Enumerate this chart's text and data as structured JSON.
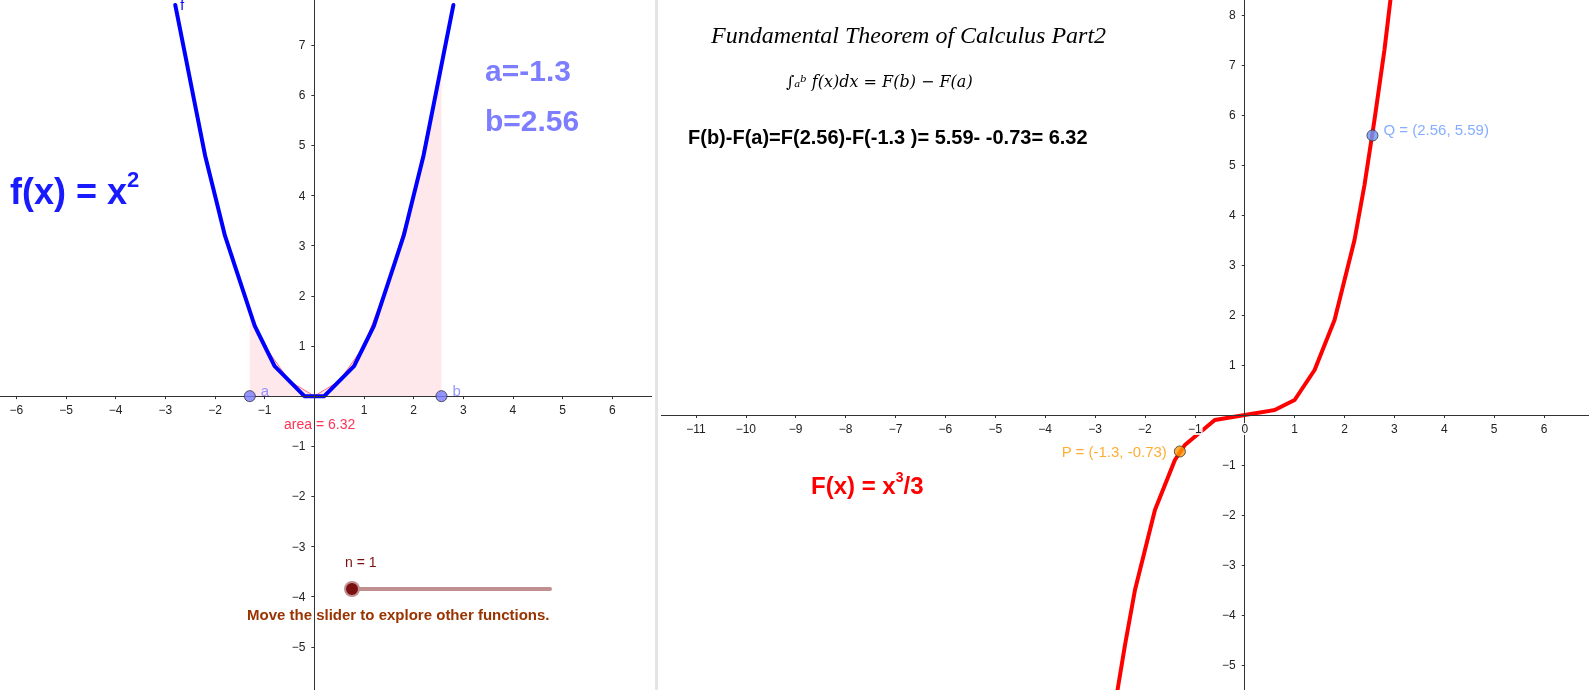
{
  "chart_data": [
    {
      "type": "line",
      "xlim": [
        -6.33,
        6.8
      ],
      "ylim": [
        -5.86,
        7.9
      ],
      "xticks": [
        -6,
        -5,
        -4,
        -3,
        -2,
        -1,
        1,
        2,
        3,
        4,
        5,
        6
      ],
      "yticks": [
        -5,
        -4,
        -3,
        -2,
        -1,
        1,
        2,
        3,
        4,
        5,
        6,
        7
      ],
      "grid": false,
      "legend": false,
      "series": [
        {
          "type": "area",
          "color": "#ff6680",
          "x": [
            -1.3,
            -1,
            -0.5,
            0,
            0.5,
            1,
            1.5,
            2,
            2.56
          ],
          "values": [
            1.7,
            1,
            0.3,
            0,
            0.3,
            1,
            2.3,
            4,
            6.6
          ]
        },
        {
          "name": "f",
          "color": "#0000ff",
          "x": [
            -2.8,
            -2.6,
            -2.4,
            -2.2,
            -2,
            -1.8,
            -1.6,
            -1.4,
            -1.2,
            -1,
            -0.8,
            -0.6,
            -0.4,
            -0.2,
            0,
            0.2,
            0.4,
            0.6,
            0.8,
            1,
            1.2,
            1.4,
            1.6,
            1.8,
            2,
            2.2,
            2.4,
            2.6,
            2.8
          ],
          "values": [
            7.8,
            6.8,
            5.8,
            4.8,
            4,
            3.2,
            2.6,
            2,
            1.4,
            1,
            0.6,
            0.4,
            0.2,
            0,
            0,
            0,
            0.2,
            0.4,
            0.6,
            1,
            1.4,
            2,
            2.6,
            3.2,
            4,
            4.8,
            5.8,
            6.8,
            7.8
          ]
        },
        {
          "type": "scatter",
          "marker": "circle",
          "color": "#7b7bff",
          "x": [
            -1.3,
            2.56
          ],
          "values": [
            0,
            0
          ],
          "value_labels": [
            "a",
            "b"
          ]
        }
      ],
      "annotations": [
        "f(x) = x$^{2}$",
        "a=-1.3",
        "b=2.56",
        "area = 6.32",
        "n = 1",
        "Move the slider to explore other functions."
      ]
    },
    {
      "type": "line",
      "title": "Fundamental Theorem of Calculus Part2",
      "subtitle": "∫ₐᵇ f(x)dx = F(b) − F(a)",
      "xlim": [
        -11.7,
        6.9
      ],
      "ylim": [
        -5.5,
        8.3
      ],
      "xticks": [
        -11,
        -10,
        -9,
        -8,
        -7,
        -6,
        -5,
        -4,
        -3,
        -2,
        -1,
        0,
        1,
        2,
        3,
        4,
        5,
        6
      ],
      "yticks": [
        -5,
        -4,
        -3,
        -2,
        -1,
        1,
        2,
        3,
        4,
        5,
        6,
        7,
        8
      ],
      "grid": false,
      "legend": false,
      "series": [
        {
          "color": "#ff0000",
          "x": [
            -2.55,
            -2.4,
            -2.2,
            -2,
            -1.8,
            -1.6,
            -1.4,
            -1.2,
            -0.6,
            0,
            0.6,
            1,
            1.2,
            1.4,
            1.6,
            1.8,
            2,
            2.2,
            2.4,
            2.6,
            2.8,
            2.92
          ],
          "values": [
            -5.5,
            -4.6,
            -3.5,
            -2.7,
            -1.9,
            -1.4,
            -0.9,
            -0.6,
            -0.1,
            0,
            0.1,
            0.3,
            0.6,
            0.9,
            1.4,
            1.9,
            2.7,
            3.5,
            4.6,
            5.9,
            7.3,
            8.3
          ]
        },
        {
          "type": "scatter",
          "marker": "circle",
          "color": "#ff9900",
          "x": [
            -1.3
          ],
          "values": [
            -0.73
          ],
          "value_labels": [
            "P = (-1.3, -0.73)"
          ]
        },
        {
          "type": "scatter",
          "marker": "circle",
          "color": "#6699ff",
          "x": [
            2.56
          ],
          "values": [
            5.59
          ],
          "value_labels": [
            "Q = (2.56, 5.59)"
          ]
        }
      ],
      "annotations": [
        "F(b)-F(a)=F(2.56)-F(-1.3 )= 5.59- -0.73= 6.32",
        "F(x) = x$^{3}$/3"
      ]
    }
  ]
}
